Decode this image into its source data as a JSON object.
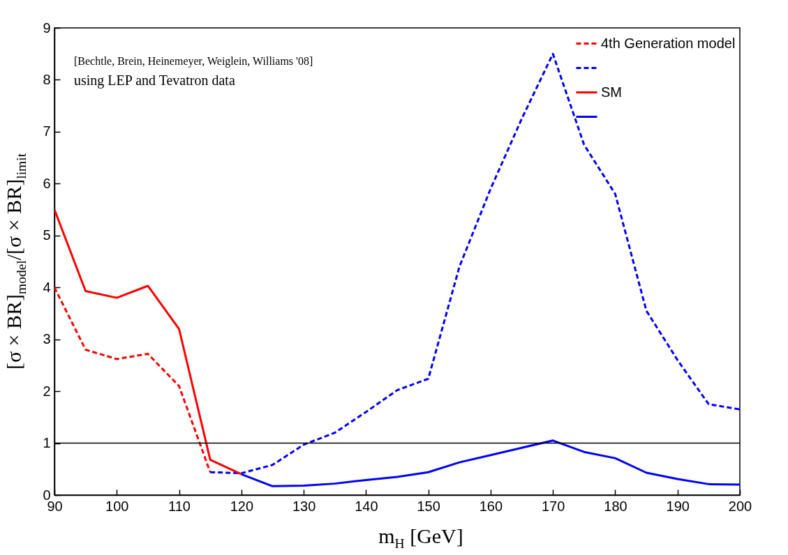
{
  "chart_data": {
    "type": "line",
    "xlabel": "m$_{H}$ [GeV]",
    "ylabel": "[σ × BR]$_{model}$/[σ × BR]$_{limit}$",
    "annotations": [
      "[Bechtle, Brein, Heinemeyer, Weiglein, Williams '08]",
      "using LEP and Tevatron data"
    ],
    "xlim": [
      90,
      200
    ],
    "xticks": [
      90,
      100,
      110,
      120,
      130,
      140,
      150,
      160,
      170,
      180,
      190,
      200
    ],
    "ylim": [
      0,
      9
    ],
    "yticks": [
      0,
      1,
      2,
      3,
      4,
      5,
      6,
      7,
      8,
      9
    ],
    "grid": false,
    "legend": "top right",
    "ref_lines": [
      {
        "axis": "y",
        "value": 1,
        "color": "#000000"
      }
    ],
    "series": [
      {
        "name": "4th Generation model",
        "color": "#ff0000",
        "line_style": "dashed",
        "x": [
          90,
          95,
          100,
          105,
          110,
          115
        ],
        "values": [
          4.0,
          2.8,
          2.62,
          2.72,
          2.1,
          0.44
        ]
      },
      {
        "color": "#0000ff",
        "line_style": "dashed",
        "x": [
          115,
          120,
          125,
          130,
          135,
          140,
          145,
          150,
          155,
          160,
          165,
          170,
          175,
          180,
          185,
          190,
          195,
          200
        ],
        "values": [
          0.44,
          0.42,
          0.58,
          0.97,
          1.2,
          1.6,
          2.02,
          2.24,
          4.4,
          5.9,
          7.25,
          8.5,
          6.75,
          5.8,
          3.55,
          2.6,
          1.75,
          1.65
        ]
      },
      {
        "name": "SM",
        "color": "#ff0000",
        "line_style": "solid",
        "x": [
          90,
          95,
          100,
          105,
          110,
          115,
          120
        ],
        "values": [
          5.5,
          3.93,
          3.8,
          4.03,
          3.2,
          0.68,
          0.4
        ]
      },
      {
        "color": "#0000ff",
        "line_style": "solid",
        "x": [
          120,
          125,
          130,
          135,
          140,
          145,
          150,
          155,
          160,
          165,
          170,
          175,
          180,
          185,
          190,
          195,
          200
        ],
        "values": [
          0.4,
          0.17,
          0.18,
          0.22,
          0.29,
          0.35,
          0.44,
          0.63,
          0.77,
          0.91,
          1.05,
          0.83,
          0.71,
          0.43,
          0.31,
          0.21,
          0.2
        ]
      }
    ]
  }
}
